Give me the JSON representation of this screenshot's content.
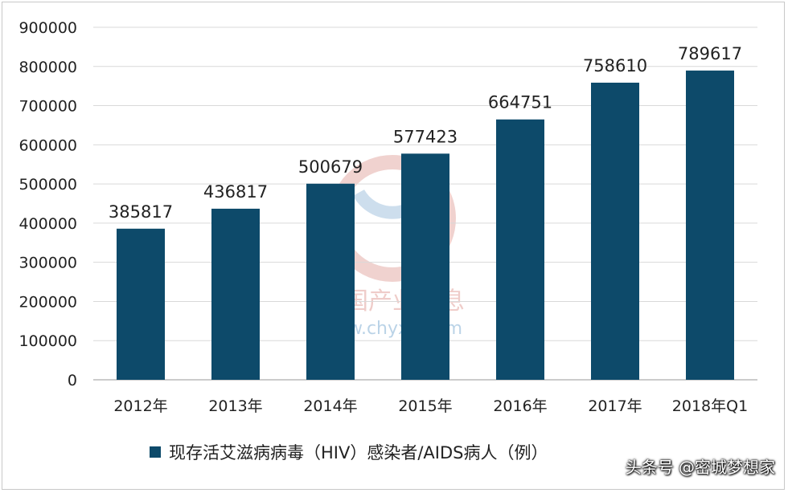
{
  "chart_data": {
    "type": "bar",
    "categories": [
      "2012年",
      "2013年",
      "2014年",
      "2015年",
      "2016年",
      "2017年",
      "2018年Q1"
    ],
    "series": [
      {
        "name": "现存活艾滋病病毒（HIV）感染者/AIDS病人（例）",
        "values": [
          385817,
          436817,
          500679,
          577423,
          664751,
          758610,
          789617
        ]
      }
    ],
    "data_labels": [
      "385817",
      "436817",
      "500679",
      "577423",
      "664751",
      "758610",
      "789617"
    ],
    "yticks": [
      "0",
      "100000",
      "200000",
      "300000",
      "400000",
      "500000",
      "600000",
      "700000",
      "800000",
      "900000"
    ],
    "ylim": [
      0,
      900000
    ],
    "grid": true,
    "legend_position": "bottom",
    "colors": {
      "bar": "#0d4a6a",
      "grid": "#d9d9d9",
      "text": "#222222"
    }
  },
  "watermark": {
    "cn": "中国产业信息",
    "url": "www.chyxx.com"
  },
  "credit": "头条号 @密城梦想家"
}
